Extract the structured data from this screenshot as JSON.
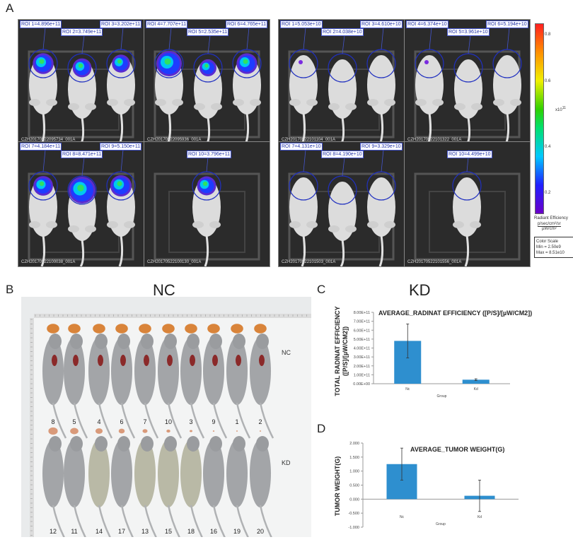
{
  "panel_labels": {
    "a": "A",
    "b": "B",
    "c": "C",
    "d": "D"
  },
  "panel_a": {
    "groups": [
      {
        "name": "NC",
        "images": [
          {
            "file": "CZH20170522095734_001A",
            "rois": [
              {
                "label": "ROI 1=4.896e+11",
                "value": 489600000000.0
              },
              {
                "label": "ROI 2=3.749e+11",
                "value": 374900000000.0
              },
              {
                "label": "ROI 3=3.202e+11",
                "value": 320200000000.0
              }
            ]
          },
          {
            "file": "CZH20170522095936_001A",
            "rois": [
              {
                "label": "ROI 4=7.707e+11",
                "value": 770700000000.0
              },
              {
                "label": "ROI 5=2.535e+11",
                "value": 253500000000.0
              },
              {
                "label": "ROI 6=4.765e+11",
                "value": 476500000000.0
              }
            ]
          },
          {
            "file": "CZH20170522100038_001A",
            "rois": [
              {
                "label": "ROI 7=4.184e+11",
                "value": 418400000000.0
              },
              {
                "label": "ROI 8=8.471e+11",
                "value": 847100000000.0
              },
              {
                "label": "ROI 9=5.150e+11",
                "value": 515000000000.0
              }
            ]
          },
          {
            "file": "CZH20170522100130_001A",
            "rois": [
              {
                "label": "ROI 10=3.796e+11",
                "value": 379600000000.0
              }
            ]
          }
        ]
      },
      {
        "name": "KD",
        "images": [
          {
            "file": "CZH20170522101104_001A",
            "rois": [
              {
                "label": "ROI 1=5.053e+10",
                "value": 50530000000.0
              },
              {
                "label": "ROI 2=4.038e+10",
                "value": 40380000000.0
              },
              {
                "label": "ROI 3=4.610e+10",
                "value": 46100000000.0
              }
            ]
          },
          {
            "file": "CZH20170522101322_001A",
            "rois": [
              {
                "label": "ROI 4=6.374e+10",
                "value": 63740000000.0
              },
              {
                "label": "ROI 5=3.961e+10",
                "value": 39610000000.0
              },
              {
                "label": "ROI 6=5.194e+10",
                "value": 51940000000.0
              }
            ]
          },
          {
            "file": "CZH20170522101503_001A",
            "rois": [
              {
                "label": "ROI 7=4.131e+10",
                "value": 41310000000.0
              },
              {
                "label": "ROI 8=4.190e+10",
                "value": 41900000000.0
              },
              {
                "label": "ROI 9=3.329e+10",
                "value": 33290000000.0
              }
            ]
          },
          {
            "file": "CZH20170522101556_001A",
            "rois": [
              {
                "label": "ROI 10=4.499e+10",
                "value": 44990000000.0
              }
            ]
          }
        ]
      }
    ],
    "colorbar": {
      "ticks": [
        "0.2",
        "0.4",
        "0.6",
        "0.8"
      ],
      "multiplier": "x10",
      "exponent": "11",
      "title": "Radiant Efficiency",
      "unit_num": "p/sec/cm²/sr",
      "unit_den": "µW/cm²",
      "scale_title": "Color Scale",
      "min": "Min = 2.50e9",
      "max": "Max = 8.51e10"
    }
  },
  "panel_b": {
    "rows": [
      {
        "label": "NC",
        "numbers": [
          "8",
          "5",
          "4",
          "6",
          "7",
          "10",
          "3",
          "9",
          "1",
          "2"
        ]
      },
      {
        "label": "KD",
        "numbers": [
          "12",
          "11",
          "14",
          "17",
          "13",
          "15",
          "18",
          "16",
          "19",
          "20"
        ]
      }
    ]
  },
  "chart_data": [
    {
      "type": "bar",
      "title": "AVERAGE_RADINAT EFFICIENCY  ([P/S]/[µW/CM2])",
      "ylabel": "TOTAL RADINAT EFFICIENCY ([P/S]/[µW/CM2])",
      "ylabel_lines": [
        "TOTAL RADINAT EFFICIENCY",
        "([P/S]/[µW/CM2])"
      ],
      "xlabel": "Group",
      "categories": [
        "Nc",
        "Kd"
      ],
      "values": [
        480000000000.0,
        45000000000.0
      ],
      "errors": [
        190000000000.0,
        10000000000.0
      ],
      "ylim": [
        0,
        800000000000.0
      ],
      "yticks": [
        "0.00E+00",
        "1.00E+11",
        "2.00E+11",
        "3.00E+11",
        "4.00E+11",
        "5.00E+11",
        "6.00E+11",
        "7.00E+11",
        "8.00E+11"
      ],
      "color": "#2e8fcf"
    },
    {
      "type": "bar",
      "title": "AVERAGE_TUMOR WEIGHT(G)",
      "ylabel": "TUMOR WEIGHT(G)",
      "xlabel": "Group",
      "categories": [
        "Nc",
        "Kd"
      ],
      "values": [
        1.25,
        0.12
      ],
      "errors": [
        0.57,
        0.56
      ],
      "ylim": [
        -1,
        2
      ],
      "yticks": [
        "-1.000",
        "-0.500",
        "0.000",
        "0.500",
        "1.000",
        "1.500",
        "2.000"
      ],
      "color": "#2e8fcf"
    }
  ]
}
